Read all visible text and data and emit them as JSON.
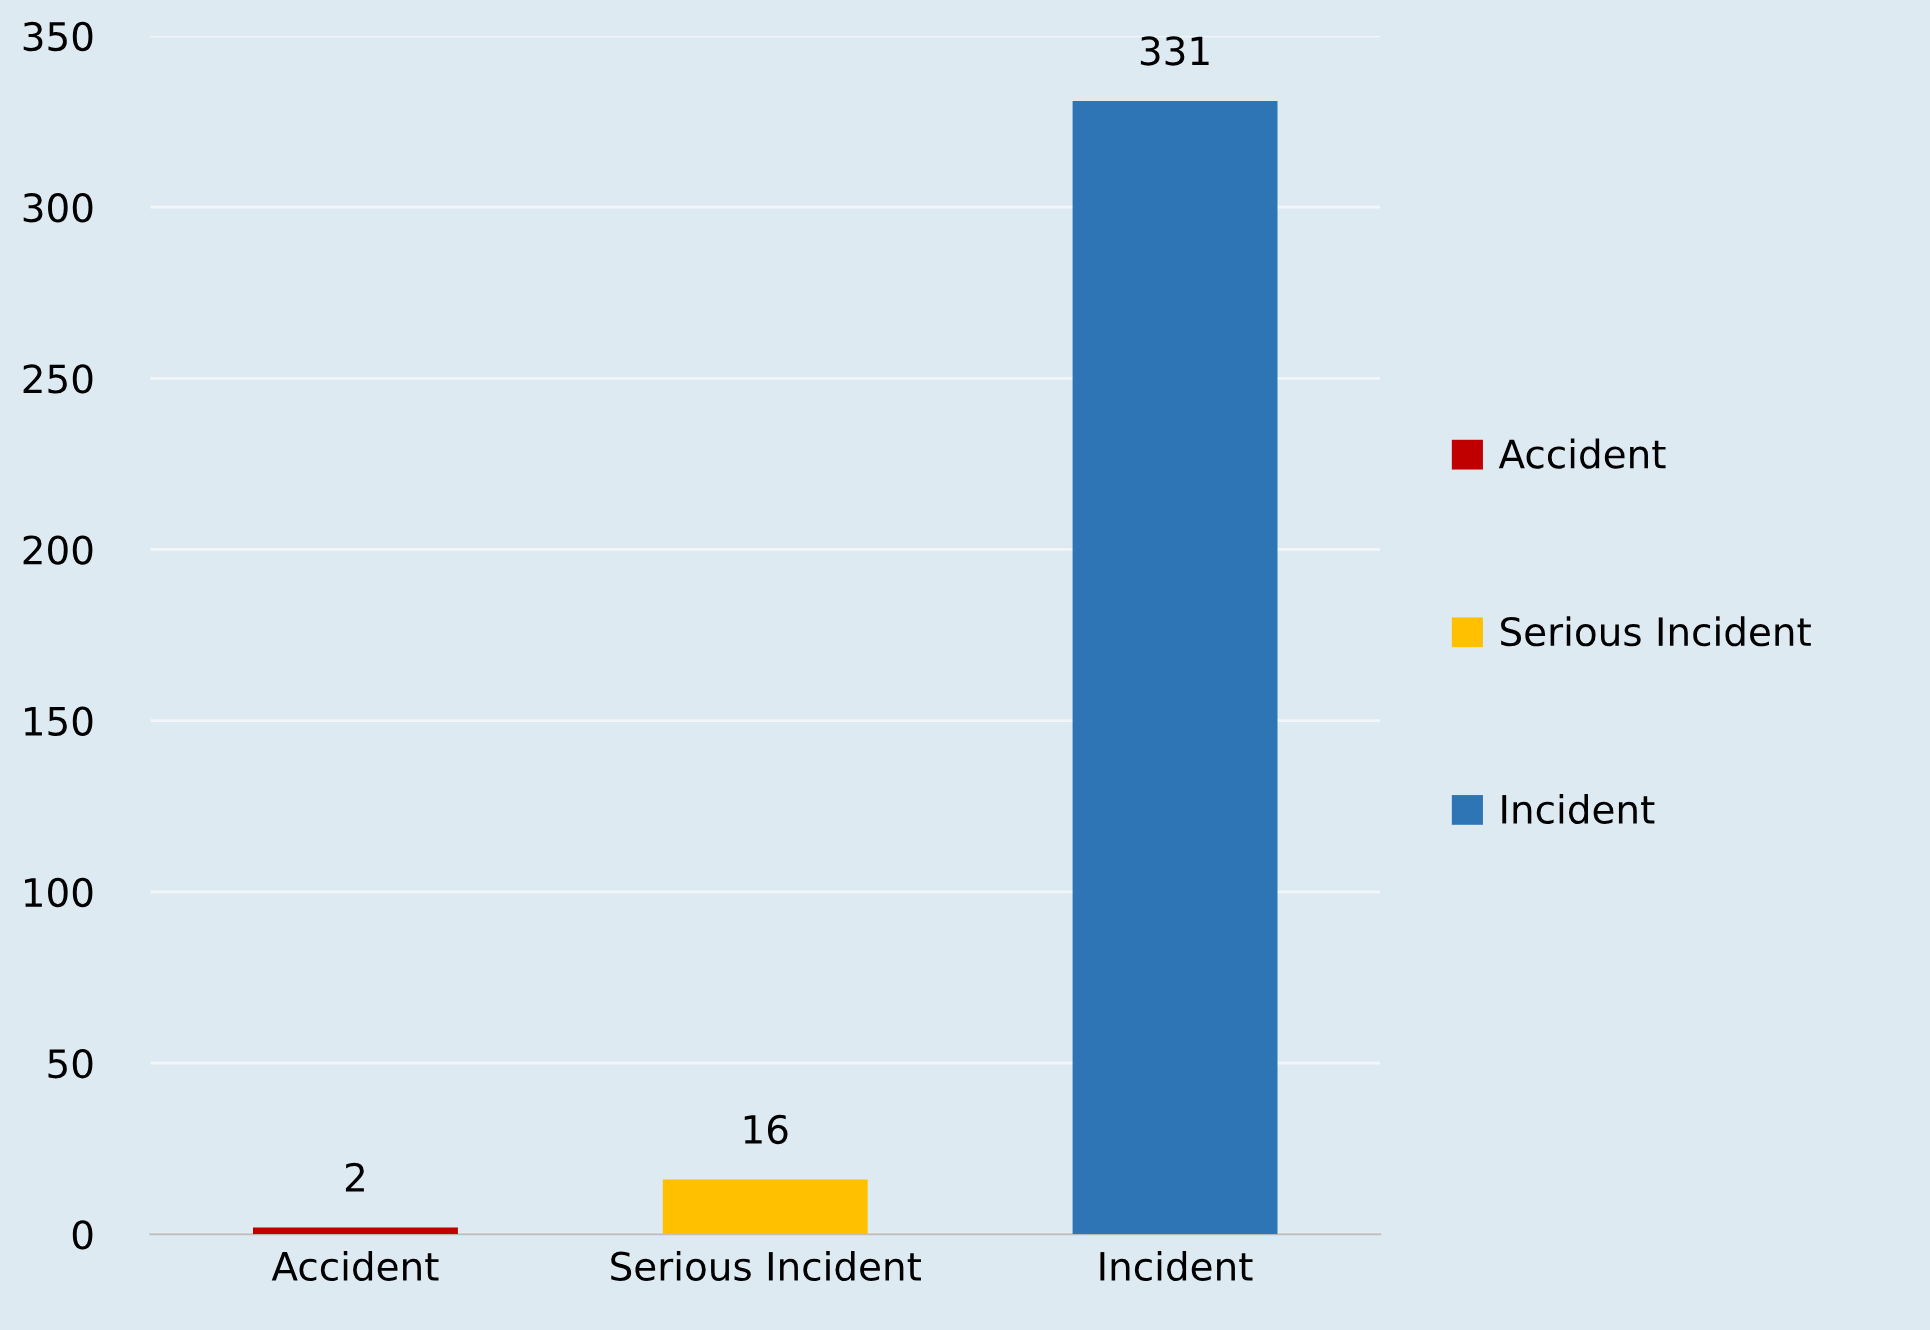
{
  "chart_data": {
    "type": "bar",
    "categories": [
      "Accident",
      "Serious Incident",
      "Incident"
    ],
    "series": [
      {
        "name": "Accident",
        "color": "#c00000",
        "values": [
          2,
          null,
          null
        ]
      },
      {
        "name": "Serious Incident",
        "color": "#ffc000",
        "values": [
          null,
          16,
          null
        ]
      },
      {
        "name": "Incident",
        "color": "#2e75b6",
        "values": [
          null,
          null,
          331
        ]
      }
    ],
    "ylim": [
      0,
      350
    ],
    "yticks": [
      0,
      50,
      100,
      150,
      200,
      250,
      300,
      350
    ],
    "grid": "y",
    "legend": "right",
    "data_labels": true
  }
}
